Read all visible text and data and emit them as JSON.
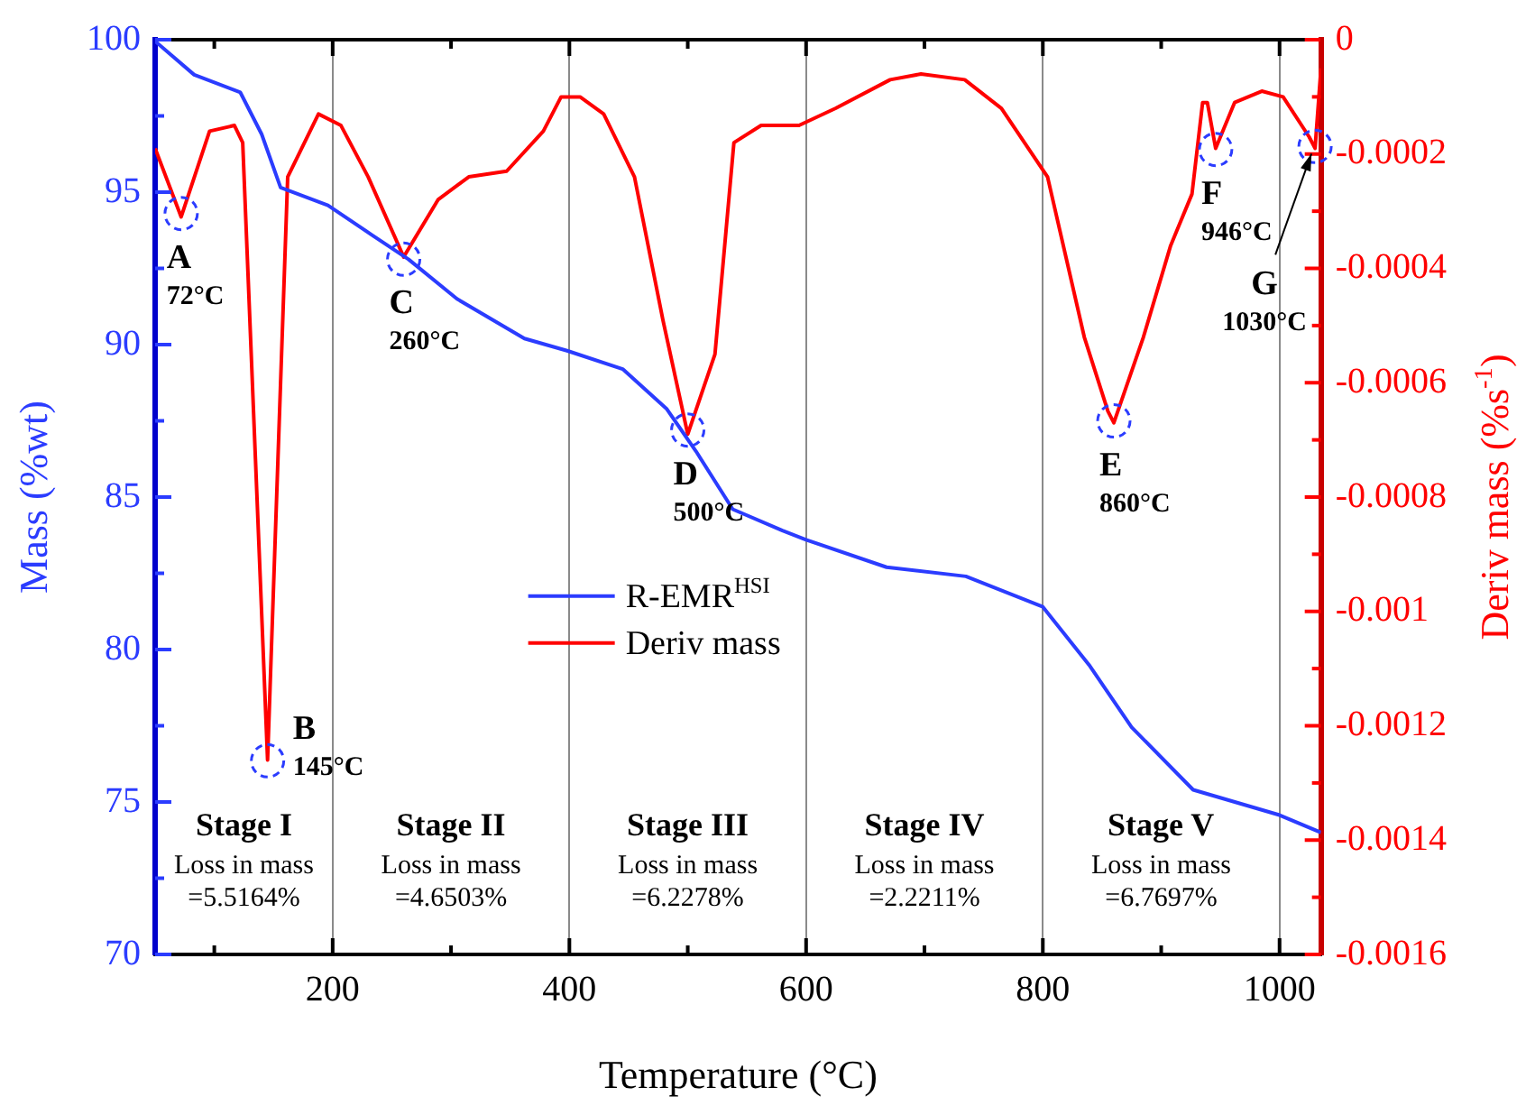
{
  "chart_data": {
    "type": "line",
    "xlabel": "Temperature (°C)",
    "ylabel": "Mass (%wt)",
    "y2label": "Deriv mass (%s$^{-1}$)",
    "xlim": [
      50,
      1035
    ],
    "xticks": [
      {
        "value": 100,
        "label": null
      },
      200,
      {
        "value": 300,
        "label": null
      },
      400,
      {
        "value": 500,
        "label": null
      },
      600,
      {
        "value": 700,
        "label": null
      },
      800,
      {
        "value": 900,
        "label": null
      },
      1000
    ],
    "ylim": [
      70,
      100
    ],
    "yticks": [
      70,
      {
        "value": 72.5,
        "label": null
      },
      75,
      {
        "value": 77.5,
        "label": null
      },
      80,
      {
        "value": 82.5,
        "label": null
      },
      85,
      {
        "value": 87.5,
        "label": null
      },
      90,
      {
        "value": 92.5,
        "label": null
      },
      95,
      {
        "value": 97.5,
        "label": null
      },
      100
    ],
    "y2lim": [
      -0.0016,
      0
    ],
    "y2ticks": [
      -0.0016,
      {
        "value": -0.0015,
        "label": null
      },
      -0.0014,
      {
        "value": -0.0013,
        "label": null
      },
      -0.0012,
      {
        "value": -0.0011,
        "label": null
      },
      -0.001,
      {
        "value": -0.0009,
        "label": null
      },
      -0.0008,
      {
        "value": -0.0007,
        "label": null
      },
      -0.0006,
      {
        "value": -0.0005,
        "label": null
      },
      -0.0004,
      {
        "value": -0.0003,
        "label": null
      },
      -0.0002,
      {
        "value": -0.0001,
        "label": null
      },
      0
    ],
    "grid": "x",
    "legend": "center",
    "marker": "none",
    "line_style": "solid",
    "series": [
      {
        "name": "R-EMR$^{HSI}$",
        "color": "#2b3cff",
        "x": [
          50,
          83,
          122,
          140,
          156,
          196,
          233,
          264,
          305,
          362,
          398,
          445,
          482,
          507,
          538,
          580,
          600,
          668,
          735,
          800,
          839,
          875,
          927,
          1000,
          1035
        ],
        "values": [
          99.95,
          98.85,
          98.27,
          96.9,
          95.15,
          94.57,
          93.6,
          92.8,
          91.5,
          90.2,
          89.8,
          89.2,
          87.9,
          86.5,
          84.6,
          83.9,
          83.6,
          82.7,
          82.4,
          81.4,
          79.5,
          77.45,
          75.4,
          74.57,
          74.0
        ]
      },
      {
        "name": "Deriv mass",
        "color": "#ff0000",
        "axis": "y2",
        "x": [
          50,
          72,
          96,
          117,
          124,
          145,
          162,
          188,
          207,
          230,
          260,
          289,
          315,
          347,
          378,
          393,
          409,
          429,
          455,
          479,
          500,
          523,
          539,
          562,
          594,
          625,
          671,
          697,
          734,
          765,
          804,
          835,
          855,
          860,
          885,
          908,
          926,
          935,
          939,
          946,
          962,
          985,
          1003,
          1025,
          1030,
          1035
        ],
        "values": [
          -0.00019,
          -0.00031,
          -0.00016,
          -0.00015,
          -0.00018,
          -0.00126,
          -0.00024,
          -0.00013,
          -0.00015,
          -0.00024,
          -0.00038,
          -0.00028,
          -0.00024,
          -0.00023,
          -0.00016,
          -0.0001,
          -0.0001,
          -0.00013,
          -0.00024,
          -0.00049,
          -0.00069,
          -0.00055,
          -0.00018,
          -0.00015,
          -0.00015,
          -0.00012,
          -7e-05,
          -6e-05,
          -7e-05,
          -0.00012,
          -0.00024,
          -0.00052,
          -0.00065,
          -0.00067,
          -0.00052,
          -0.00036,
          -0.00027,
          -0.00011,
          -0.00011,
          -0.00019,
          -0.00011,
          -9e-05,
          -0.0001,
          -0.00017,
          -0.00019,
          -5e-05
        ]
      }
    ],
    "annotations": [
      {
        "text": "A\n72°C",
        "x": 72,
        "y": 94.3
      },
      {
        "text": "B\n145°C",
        "x": 145,
        "y": 76.35
      },
      {
        "text": "C\n260°C",
        "x": 260,
        "y": 92.8
      },
      {
        "text": "D\n500°C",
        "x": 500,
        "y": 87.2
      },
      {
        "text": "E\n860°C",
        "x": 860,
        "y": 87.5
      },
      {
        "text": "F\n946°C",
        "x": 946,
        "y": 96.4
      },
      {
        "text": "G\n1030°C",
        "x": 1030,
        "y": 96.5
      },
      "Stage I\nLoss in mass\n=5.5164%",
      "Stage II\nLoss in mass\n=4.6503%",
      "Stage III\nLoss in mass\n=6.2278%",
      "Stage IV\nLoss in mass\n=2.2211%",
      "Stage V\nLoss in mass\n=6.7697%"
    ]
  }
}
